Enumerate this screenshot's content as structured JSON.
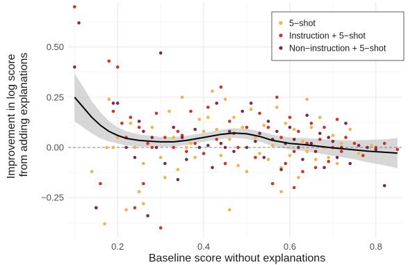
{
  "chart_data": {
    "type": "scatter",
    "xlabel": "Baseline score without explanations",
    "ylabel": [
      "Improvement in log score",
      "from adding explanations"
    ],
    "xlim": [
      0.085,
      0.86
    ],
    "ylim": [
      -0.45,
      0.72
    ],
    "x_ticks": [
      0.2,
      0.4,
      0.6,
      0.8
    ],
    "x_tick_labels": [
      "0.2",
      "0.4",
      "0.6",
      "0.8"
    ],
    "y_ticks": [
      -0.25,
      0.0,
      0.25,
      0.5
    ],
    "y_tick_labels": [
      "−0.25",
      "0.00",
      "0.25",
      "0.50"
    ],
    "grid": true,
    "reference_line_y": 0,
    "legend_position": "top-right",
    "series": [
      {
        "name": "5−shot",
        "color": "#f5b342",
        "points": [
          [
            0.14,
            -0.12
          ],
          [
            0.17,
            -0.38
          ],
          [
            0.175,
            0.0
          ],
          [
            0.18,
            0.24
          ],
          [
            0.19,
            0.0
          ],
          [
            0.2,
            0.05
          ],
          [
            0.22,
            -0.31
          ],
          [
            0.23,
            0.12
          ],
          [
            0.24,
            0.0
          ],
          [
            0.25,
            -0.22
          ],
          [
            0.26,
            -0.08
          ],
          [
            0.27,
            0.02
          ],
          [
            0.28,
            0.1
          ],
          [
            0.3,
            -0.05
          ],
          [
            0.31,
            -0.15
          ],
          [
            0.32,
            0.18
          ],
          [
            0.33,
            0.05
          ],
          [
            0.34,
            -0.11
          ],
          [
            0.35,
            0.25
          ],
          [
            0.36,
            0.0
          ],
          [
            0.37,
            0.02
          ],
          [
            0.38,
            -0.05
          ],
          [
            0.39,
            0.14
          ],
          [
            0.4,
            0.08
          ],
          [
            0.41,
            0.15
          ],
          [
            0.42,
            0.28
          ],
          [
            0.43,
            0.09
          ],
          [
            0.44,
            -0.04
          ],
          [
            0.45,
            0.24
          ],
          [
            0.46,
            0.04
          ],
          [
            0.47,
            0.15
          ],
          [
            0.48,
            -0.09
          ],
          [
            0.49,
            0.1
          ],
          [
            0.5,
            -0.12
          ],
          [
            0.51,
            0.19
          ],
          [
            0.52,
            0.05
          ],
          [
            0.53,
            -0.03
          ],
          [
            0.54,
            0.11
          ],
          [
            0.55,
            -0.06
          ],
          [
            0.56,
            0.01
          ],
          [
            0.57,
            0.2
          ],
          [
            0.58,
            -0.1
          ],
          [
            0.59,
            0.12
          ],
          [
            0.6,
            -0.04
          ],
          [
            0.61,
            0.09
          ],
          [
            0.62,
            -0.15
          ],
          [
            0.63,
            0.03
          ],
          [
            0.64,
            -0.02
          ],
          [
            0.65,
            0.1
          ],
          [
            0.66,
            -0.06
          ],
          [
            0.67,
            0.15
          ],
          [
            0.68,
            0.0
          ],
          [
            0.69,
            -0.05
          ],
          [
            0.7,
            0.06
          ],
          [
            0.71,
            -0.08
          ],
          [
            0.72,
            0.02
          ],
          [
            0.74,
            0.09
          ],
          [
            0.76,
            -0.03
          ],
          [
            0.79,
            0.01
          ],
          [
            0.46,
            -0.31
          ],
          [
            0.26,
            -0.28
          ],
          [
            0.58,
            -0.22
          ],
          [
            0.64,
            0.24
          ]
        ]
      },
      {
        "name": "Instruction + 5−shot",
        "color": "#d7301f",
        "points": [
          [
            0.1,
            0.7
          ],
          [
            0.15,
            -0.3
          ],
          [
            0.16,
            -0.18
          ],
          [
            0.18,
            0.43
          ],
          [
            0.19,
            0.18
          ],
          [
            0.2,
            0.4
          ],
          [
            0.21,
            0.12
          ],
          [
            0.22,
            0.05
          ],
          [
            0.23,
            0.15
          ],
          [
            0.24,
            -0.3
          ],
          [
            0.25,
            0.1
          ],
          [
            0.26,
            -0.18
          ],
          [
            0.27,
            0.02
          ],
          [
            0.28,
            0.0
          ],
          [
            0.29,
            0.17
          ],
          [
            0.3,
            -0.4
          ],
          [
            0.31,
            0.05
          ],
          [
            0.33,
            0.0
          ],
          [
            0.34,
            0.08
          ],
          [
            0.36,
            -0.02
          ],
          [
            0.37,
            0.18
          ],
          [
            0.38,
            0.02
          ],
          [
            0.39,
            0.0
          ],
          [
            0.41,
            0.2
          ],
          [
            0.43,
            0.04
          ],
          [
            0.44,
            0.3
          ],
          [
            0.45,
            -0.08
          ],
          [
            0.47,
            0.07
          ],
          [
            0.48,
            0.0
          ],
          [
            0.5,
            0.1
          ],
          [
            0.52,
            -0.05
          ],
          [
            0.53,
            0.17
          ],
          [
            0.55,
            0.1
          ],
          [
            0.56,
            -0.18
          ],
          [
            0.58,
            0.05
          ],
          [
            0.59,
            -0.08
          ],
          [
            0.6,
            0.15
          ],
          [
            0.61,
            -0.02
          ],
          [
            0.62,
            0.08
          ],
          [
            0.63,
            -0.12
          ],
          [
            0.64,
            0.02
          ],
          [
            0.65,
            0.12
          ],
          [
            0.66,
            -0.1
          ],
          [
            0.67,
            0.04
          ],
          [
            0.68,
            0.1
          ],
          [
            0.69,
            -0.07
          ],
          [
            0.7,
            0.0
          ],
          [
            0.71,
            0.14
          ],
          [
            0.72,
            -0.02
          ],
          [
            0.73,
            0.05
          ],
          [
            0.75,
            0.02
          ],
          [
            0.77,
            -0.04
          ],
          [
            0.8,
            0.0
          ],
          [
            0.82,
            0.02
          ],
          [
            0.85,
            -0.01
          ],
          [
            0.4,
            -0.03
          ],
          [
            0.35,
            0.06
          ],
          [
            0.57,
            0.25
          ],
          [
            0.61,
            -0.2
          ],
          [
            0.46,
            0.13
          ]
        ]
      },
      {
        "name": "Non−instruction + 5−shot",
        "color": "#7a2a4a",
        "points": [
          [
            0.1,
            0.4
          ],
          [
            0.11,
            0.62
          ],
          [
            0.15,
            -0.3
          ],
          [
            0.19,
            0.22
          ],
          [
            0.2,
            0.22
          ],
          [
            0.22,
            0.0
          ],
          [
            0.24,
            -0.05
          ],
          [
            0.26,
            0.08
          ],
          [
            0.27,
            -0.34
          ],
          [
            0.28,
            0.05
          ],
          [
            0.29,
            0.0
          ],
          [
            0.3,
            0.47
          ],
          [
            0.31,
            -0.08
          ],
          [
            0.33,
            0.1
          ],
          [
            0.35,
            0.05
          ],
          [
            0.36,
            -0.06
          ],
          [
            0.38,
            0.09
          ],
          [
            0.39,
            0.0
          ],
          [
            0.41,
            0.01
          ],
          [
            0.42,
            -0.1
          ],
          [
            0.43,
            0.22
          ],
          [
            0.45,
            0.0
          ],
          [
            0.46,
            0.08
          ],
          [
            0.47,
            -0.02
          ],
          [
            0.49,
            0.18
          ],
          [
            0.5,
            0.0
          ],
          [
            0.51,
            0.22
          ],
          [
            0.53,
            0.07
          ],
          [
            0.54,
            -0.05
          ],
          [
            0.55,
            0.13
          ],
          [
            0.56,
            0.04
          ],
          [
            0.58,
            -0.11
          ],
          [
            0.59,
            0.02
          ],
          [
            0.6,
            0.1
          ],
          [
            0.61,
            0.04
          ],
          [
            0.62,
            0.0
          ],
          [
            0.63,
            -0.06
          ],
          [
            0.64,
            0.16
          ],
          [
            0.65,
            0.02
          ],
          [
            0.66,
            -0.02
          ],
          [
            0.67,
            0.07
          ],
          [
            0.68,
            -0.1
          ],
          [
            0.69,
            0.05
          ],
          [
            0.7,
            0.03
          ],
          [
            0.71,
            -0.05
          ],
          [
            0.72,
            0.0
          ],
          [
            0.73,
            0.12
          ],
          [
            0.74,
            -0.08
          ],
          [
            0.76,
            0.01
          ],
          [
            0.78,
            0.0
          ],
          [
            0.8,
            -0.01
          ],
          [
            0.82,
            -0.19
          ],
          [
            0.44,
            0.02
          ],
          [
            0.52,
            0.03
          ],
          [
            0.57,
            0.08
          ],
          [
            0.34,
            -0.16
          ],
          [
            0.25,
            0.13
          ]
        ]
      }
    ],
    "smooth_fit": {
      "x": [
        0.1,
        0.12,
        0.14,
        0.16,
        0.18,
        0.2,
        0.22,
        0.25,
        0.28,
        0.3,
        0.33,
        0.36,
        0.4,
        0.44,
        0.47,
        0.5,
        0.53,
        0.56,
        0.6,
        0.63,
        0.66,
        0.7,
        0.74,
        0.78,
        0.82,
        0.85
      ],
      "y": [
        0.25,
        0.2,
        0.15,
        0.11,
        0.08,
        0.06,
        0.045,
        0.035,
        0.03,
        0.028,
        0.028,
        0.035,
        0.05,
        0.065,
        0.072,
        0.068,
        0.055,
        0.035,
        0.02,
        0.015,
        0.008,
        -0.002,
        -0.01,
        -0.018,
        -0.024,
        -0.028
      ],
      "ci_half_width": [
        0.12,
        0.1,
        0.08,
        0.065,
        0.05,
        0.04,
        0.035,
        0.03,
        0.027,
        0.025,
        0.024,
        0.023,
        0.022,
        0.023,
        0.024,
        0.025,
        0.026,
        0.028,
        0.03,
        0.032,
        0.035,
        0.04,
        0.045,
        0.055,
        0.065,
        0.075
      ]
    }
  }
}
